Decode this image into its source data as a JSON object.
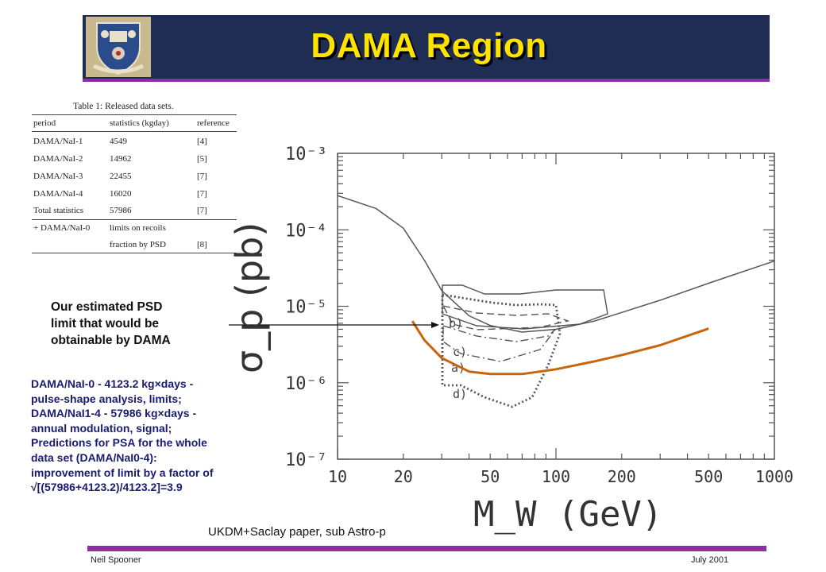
{
  "header": {
    "title": "DAMA Region"
  },
  "table": {
    "caption": "Table 1: Released data sets.",
    "columns": [
      "period",
      "statistics (kgday)",
      "reference"
    ],
    "rows": [
      [
        "DAMA/NaI-1",
        "4549",
        "[4]"
      ],
      [
        "DAMA/NaI-2",
        "14962",
        "[5]"
      ],
      [
        "DAMA/NaI-3",
        "22455",
        "[7]"
      ],
      [
        "DAMA/NaI-4",
        "16020",
        "[7]"
      ],
      [
        "Total statistics",
        "57986",
        "[7]"
      ],
      [
        "+ DAMA/NaI-0",
        "limits on recoils",
        ""
      ],
      [
        "",
        "fraction by PSD",
        "[8]"
      ]
    ]
  },
  "annotation": {
    "lines": [
      "Our estimated PSD",
      "limit that would be",
      "obtainable by DAMA"
    ]
  },
  "description": {
    "lines": [
      "DAMA/NaI-0 - 4123.2 kg×days -",
      "pulse-shape analysis, limits;",
      "DAMA/NaI1-4 - 57986 kg×days -",
      "annual modulation, signal;",
      "Predictions for PSA for the whole",
      "data set (DAMA/NaI0-4):",
      "improvement of limit by a factor of",
      "√[(57986+4123.2)/4123.2]=3.9"
    ]
  },
  "caption": "UKDM+Saclay paper, sub Astro-p",
  "footer": {
    "left": "Neil Spooner",
    "right": "July 2001"
  },
  "colors": {
    "header_bg": "#1f2d55",
    "title": "#ffe300",
    "accent": "#8b2fa5",
    "psd_curve": "#c8650a",
    "text_blue": "#1b1b73"
  },
  "chart_data": {
    "type": "line",
    "xlabel": "M_W (GeV)",
    "ylabel": "σ_p (pb)",
    "x_scale": "log",
    "y_scale": "log",
    "xlim": [
      10,
      1000
    ],
    "ylim": [
      1e-07,
      0.001
    ],
    "x_ticks": [
      "10",
      "20",
      "50",
      "100",
      "200",
      "500",
      "1000"
    ],
    "y_ticks": [
      "10⁻³",
      "10⁻⁴",
      "10⁻⁵",
      "10⁻⁶",
      "10⁻⁷"
    ],
    "region_labels": [
      "b)",
      "c)",
      "a)",
      "d)"
    ],
    "series": [
      {
        "style": "solid",
        "x": [
          10,
          15,
          20,
          25,
          30,
          40,
          50,
          70,
          100,
          150,
          200,
          300,
          500,
          1000
        ],
        "y": [
          0.00028,
          0.00019,
          0.000105,
          4e-05,
          1.6e-05,
          7.5e-06,
          5.6e-06,
          4.6e-06,
          5e-06,
          6.4e-06,
          8.3e-06,
          1.2e-05,
          2e-05,
          3.9e-05
        ]
      },
      {
        "style": "solid",
        "x": [
          22,
          25,
          30,
          40,
          50,
          70,
          100,
          150,
          200,
          300,
          500
        ],
        "y": [
          6.4e-06,
          3.6e-06,
          2.1e-06,
          1.4e-06,
          1.3e-06,
          1.3e-06,
          1.5e-06,
          1.9e-06,
          2.3e-06,
          3.1e-06,
          5.1e-06
        ]
      }
    ]
  }
}
